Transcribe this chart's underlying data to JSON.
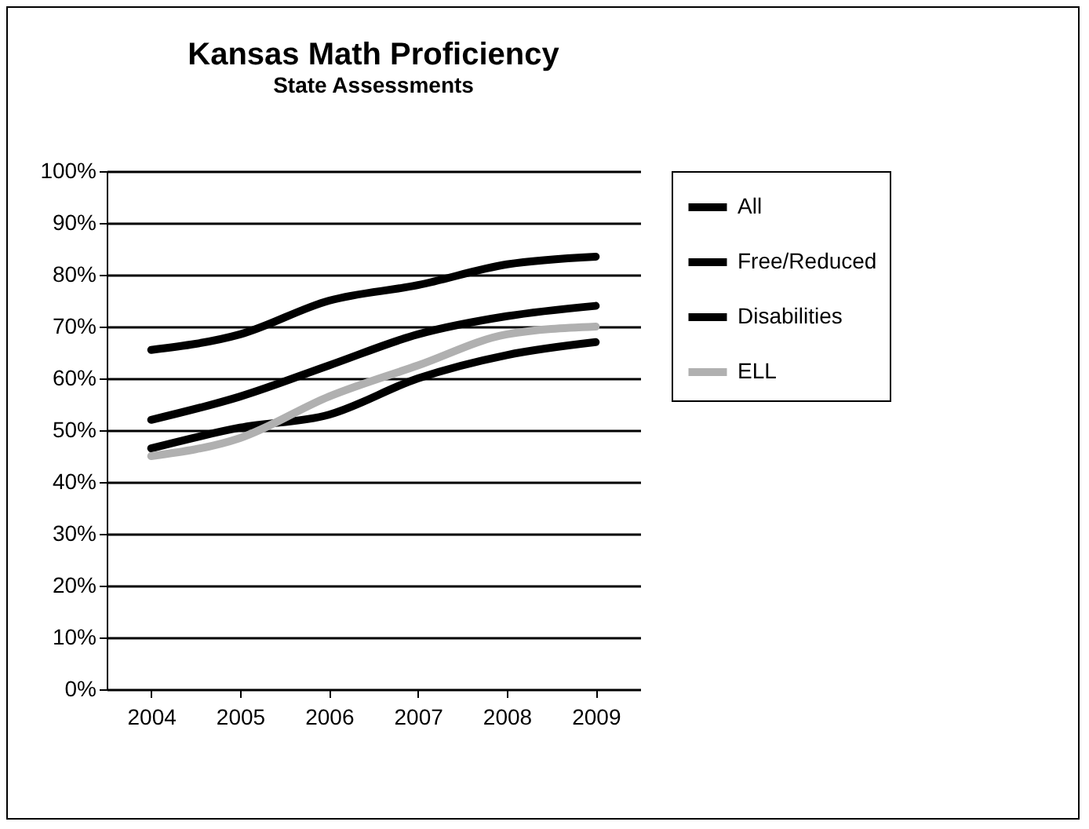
{
  "chart_data": {
    "type": "line",
    "title": "Kansas Math Proficiency",
    "subtitle": "State Assessments",
    "categories": [
      "2004",
      "2005",
      "2006",
      "2007",
      "2008",
      "2009"
    ],
    "series": [
      {
        "name": "All",
        "color": "#000000",
        "values": [
          65.5,
          68.5,
          75,
          78,
          82,
          83.5
        ]
      },
      {
        "name": "Free/Reduced",
        "color": "#000000",
        "values": [
          52,
          56.5,
          62.5,
          68.5,
          72,
          74
        ]
      },
      {
        "name": "Disabilities",
        "color": "#000000",
        "values": [
          46.5,
          50.5,
          53,
          60,
          64.5,
          67
        ]
      },
      {
        "name": "ELL",
        "color": "#b0b0b0",
        "values": [
          45,
          48.5,
          56.5,
          62.5,
          68.5,
          70
        ]
      }
    ],
    "ylim": [
      0,
      100
    ],
    "yticks": [
      {
        "value": 0,
        "label": "0%"
      },
      {
        "value": 10,
        "label": "10%"
      },
      {
        "value": 20,
        "label": "20%"
      },
      {
        "value": 30,
        "label": "30%"
      },
      {
        "value": 40,
        "label": "40%"
      },
      {
        "value": 50,
        "label": "50%"
      },
      {
        "value": 60,
        "label": "60%"
      },
      {
        "value": 70,
        "label": "70%"
      },
      {
        "value": 80,
        "label": "80%"
      },
      {
        "value": 90,
        "label": "90%"
      },
      {
        "value": 100,
        "label": "100%"
      }
    ],
    "grid": "y",
    "legend": "right",
    "marker": "none",
    "line_style": "solid"
  }
}
